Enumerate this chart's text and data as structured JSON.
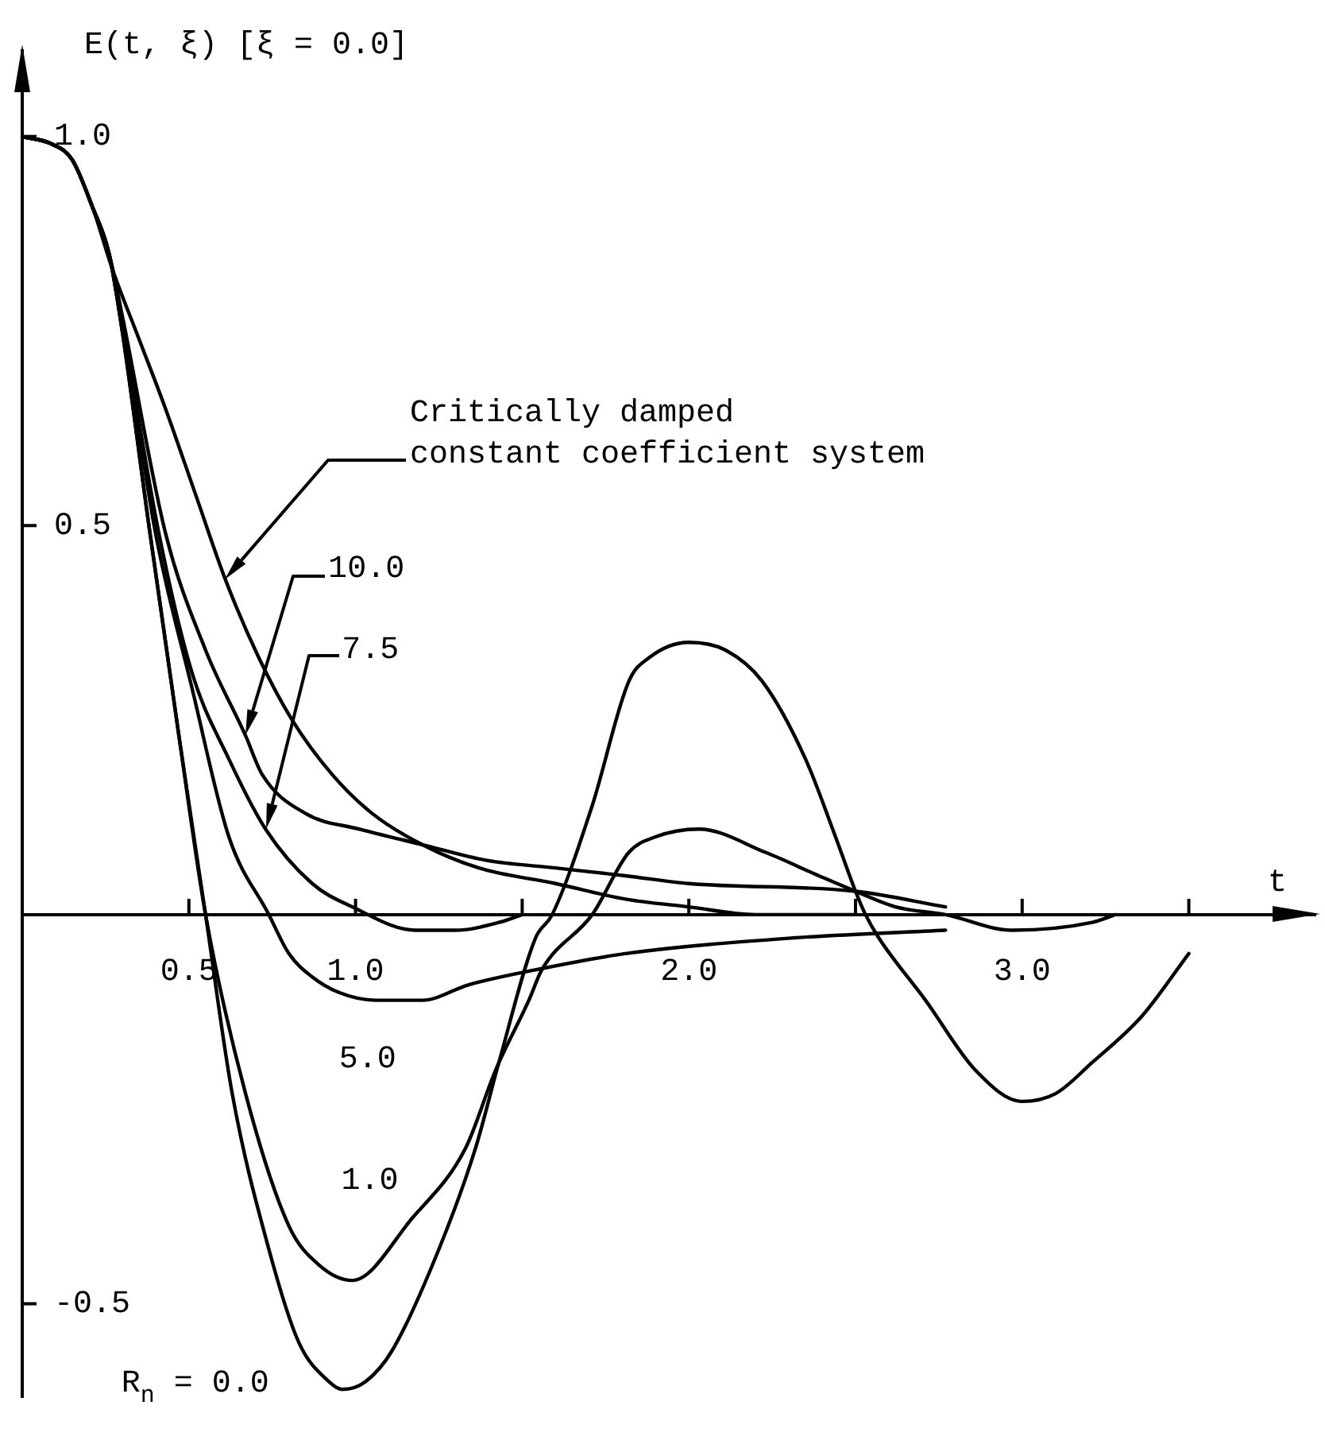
{
  "chart_data": {
    "type": "line",
    "xlabel": "t",
    "ylabel": "E(t, ξ) [ξ = 0.0]",
    "xlim": [
      0,
      3.88
    ],
    "ylim": [
      -0.62,
      1.11
    ],
    "xticks": [
      0.5,
      {
        "value": 1,
        "label": "1.0"
      },
      {
        "value": 1.5,
        "label": null
      },
      {
        "value": 2,
        "label": "2.0"
      },
      {
        "value": 2.5,
        "label": null
      },
      {
        "value": 3,
        "label": "3.0"
      },
      {
        "value": 3.5,
        "label": null
      }
    ],
    "yticks": [
      -0.5,
      0.5,
      {
        "value": 1,
        "label": "1.0"
      }
    ],
    "annotations": [
      "Critically damped constant coefficient system",
      "10.0",
      "7.5"
    ],
    "series": [
      {
        "color": "#000000",
        "x": [
          0,
          0.09,
          0.15,
          0.21,
          0.27,
          0.35,
          0.43,
          0.52,
          0.61,
          0.71,
          0.81,
          0.93,
          1.05,
          1.2,
          1.37,
          1.6,
          1.81,
          2.0,
          2.2,
          2.5
        ],
        "values": [
          1.0,
          0.99,
          0.97,
          0.91,
          0.83,
          0.74,
          0.65,
          0.54,
          0.43,
          0.33,
          0.25,
          0.18,
          0.13,
          0.09,
          0.06,
          0.04,
          0.02,
          0.01,
          0.0,
          0.0
        ]
      },
      {
        "color": "#000000",
        "x": [
          0,
          0.09,
          0.15,
          0.21,
          0.26,
          0.3,
          0.43,
          0.55,
          0.67,
          0.72,
          0.85,
          1.01,
          1.2,
          1.39,
          1.6,
          1.81,
          2.0,
          2.5,
          2.77
        ],
        "values": [
          1.0,
          0.99,
          0.97,
          0.91,
          0.85,
          0.77,
          0.49,
          0.34,
          0.23,
          0.18,
          0.13,
          0.11,
          0.09,
          0.07,
          0.06,
          0.05,
          0.04,
          0.03,
          0.01
        ]
      },
      {
        "color": "#000000",
        "x": [
          0,
          0.09,
          0.15,
          0.21,
          0.26,
          0.3,
          0.41,
          0.51,
          0.62,
          0.73,
          0.87,
          0.99,
          1.18,
          1.3,
          1.43,
          1.5
        ],
        "values": [
          1.0,
          0.99,
          0.97,
          0.91,
          0.85,
          0.76,
          0.49,
          0.31,
          0.2,
          0.11,
          0.04,
          0.01,
          -0.02,
          -0.02,
          -0.01,
          0.0
        ]
      },
      {
        "name": "5.0",
        "color": "#000000",
        "x": [
          0,
          0.09,
          0.15,
          0.21,
          0.26,
          0.3,
          0.4,
          0.51,
          0.62,
          0.74,
          0.8,
          0.87,
          0.95,
          1.06,
          1.2,
          1.34,
          1.55,
          1.81,
          2.31,
          2.77
        ],
        "values": [
          1.0,
          0.99,
          0.97,
          0.91,
          0.85,
          0.76,
          0.49,
          0.29,
          0.1,
          0.0,
          -0.05,
          -0.08,
          -0.1,
          -0.11,
          -0.11,
          -0.09,
          -0.07,
          -0.05,
          -0.03,
          -0.02
        ]
      },
      {
        "name": "1.0",
        "color": "#000000",
        "x": [
          0,
          0.09,
          0.15,
          0.21,
          0.26,
          0.3,
          0.38,
          0.47,
          0.55,
          0.67,
          0.8,
          0.89,
          0.99,
          1.17,
          1.33,
          1.42,
          1.52,
          1.56,
          1.71,
          1.82,
          1.9,
          2.03,
          2.23,
          2.39,
          2.5,
          2.62,
          2.77,
          2.97,
          3.21,
          3.28
        ],
        "values": [
          1.0,
          0.99,
          0.97,
          0.91,
          0.85,
          0.75,
          0.5,
          0.23,
          0.0,
          -0.23,
          -0.4,
          -0.45,
          -0.47,
          -0.39,
          -0.3,
          -0.2,
          -0.11,
          -0.07,
          0.0,
          0.08,
          0.1,
          0.11,
          0.08,
          0.05,
          0.03,
          0.01,
          0.0,
          -0.02,
          -0.01,
          0.0
        ]
      },
      {
        "name": "R$_{n}$ = 0.0",
        "color": "#000000",
        "x": [
          0,
          0.09,
          0.15,
          0.21,
          0.26,
          0.3,
          0.38,
          0.47,
          0.55,
          0.63,
          0.74,
          0.83,
          0.92,
          0.96,
          1.03,
          1.11,
          1.25,
          1.36,
          1.43,
          1.54,
          1.59,
          1.71,
          1.82,
          1.88,
          2.0,
          2.11,
          2.22,
          2.35,
          2.44,
          2.5,
          2.53,
          2.57,
          2.71,
          2.86,
          3.0,
          3.1,
          3.21,
          3.36,
          3.5
        ],
        "values": [
          1.0,
          0.99,
          0.97,
          0.91,
          0.85,
          0.75,
          0.5,
          0.23,
          0.0,
          -0.23,
          -0.43,
          -0.55,
          -0.6,
          -0.61,
          -0.6,
          -0.56,
          -0.43,
          -0.3,
          -0.19,
          -0.03,
          0.0,
          0.14,
          0.3,
          0.33,
          0.35,
          0.34,
          0.3,
          0.2,
          0.1,
          0.03,
          0.0,
          -0.03,
          -0.11,
          -0.2,
          -0.24,
          -0.23,
          -0.19,
          -0.13,
          -0.05
        ]
      }
    ]
  }
}
